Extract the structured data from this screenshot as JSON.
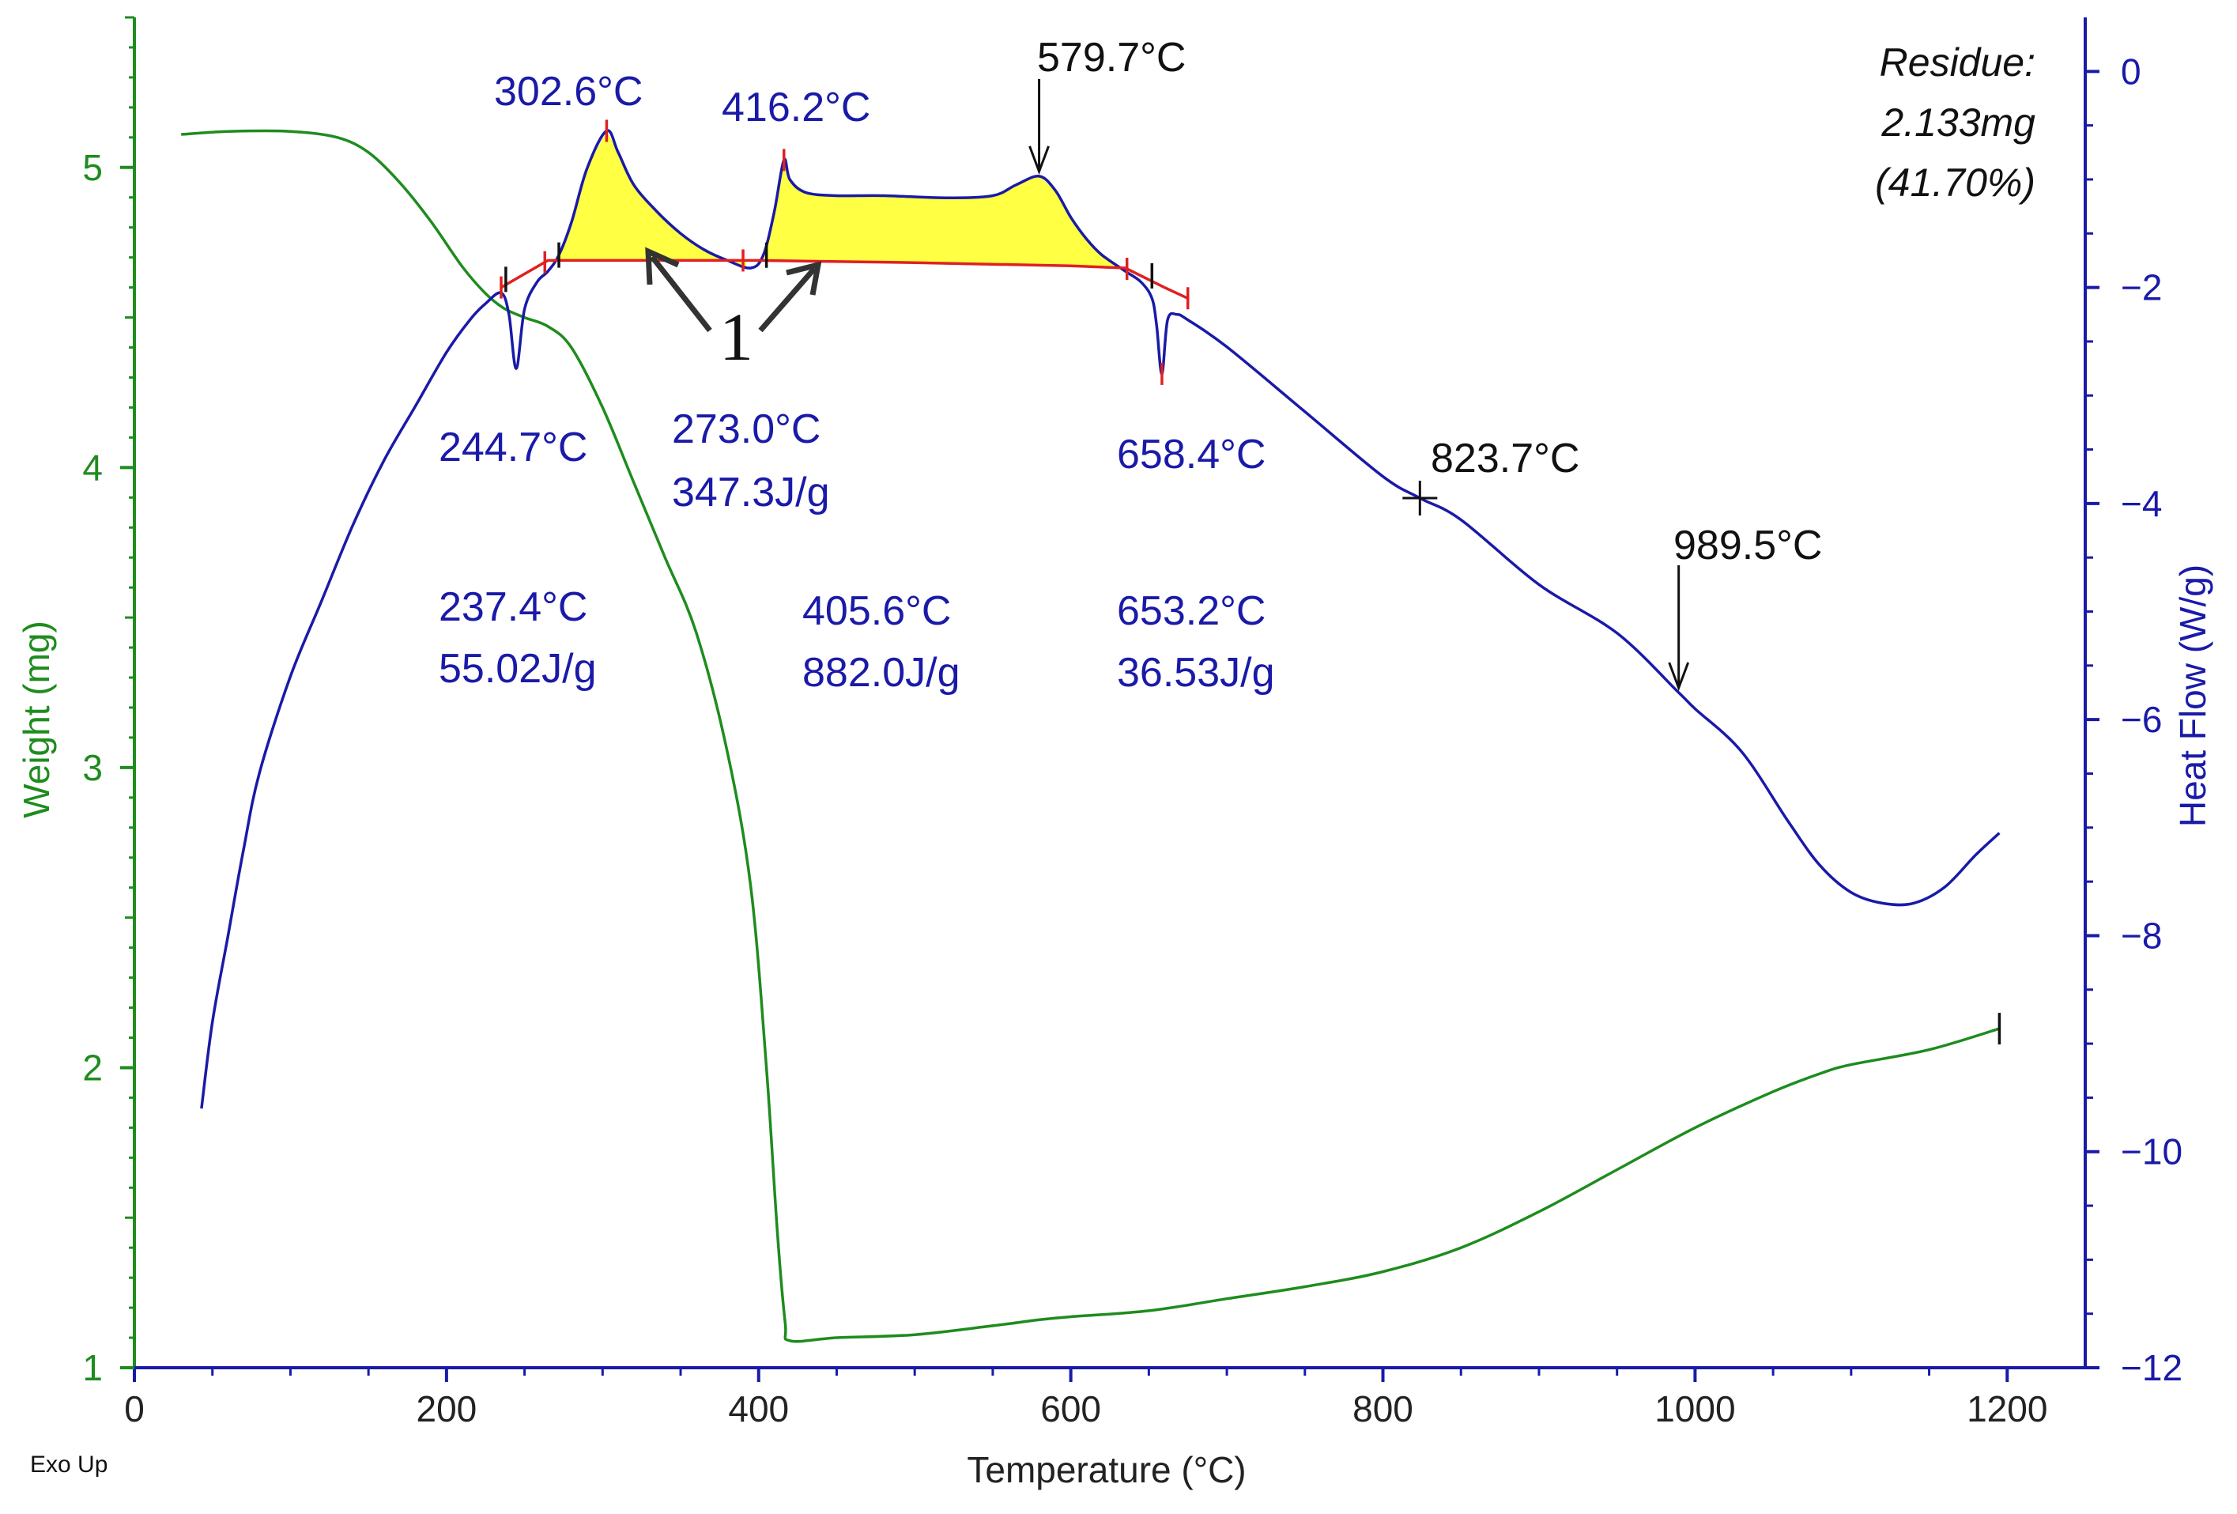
{
  "chart_data": {
    "type": "line",
    "title": "",
    "xlabel": "Temperature (°C)",
    "ylabel_left": "Weight (mg)",
    "ylabel_right": "Heat Flow (W/g)",
    "corner_label": "Exo Up",
    "xlim": [
      0,
      1250
    ],
    "ylim_left": [
      1,
      5.5
    ],
    "ylim_right": [
      -12,
      0.5
    ],
    "x_ticks": [
      "0",
      "200",
      "400",
      "600",
      "800",
      "1000",
      "1200"
    ],
    "y_left_ticks": [
      "1",
      "2",
      "3",
      "4",
      "5"
    ],
    "y_right_ticks": [
      "0",
      "-2",
      "-4",
      "-6",
      "-8",
      "-10",
      "-12"
    ],
    "colors": {
      "weight": "#1e8c1e",
      "heat_flow": "#1a1aa8",
      "baseline": "#e02020",
      "fill": "#ffff44",
      "annotation_blue": "#1a1aa8",
      "annotation_black": "#111111"
    },
    "series": [
      {
        "name": "Weight",
        "axis": "left",
        "color": "#1e8c1e",
        "x": [
          30,
          60,
          100,
          130,
          150,
          170,
          190,
          210,
          225,
          237,
          250,
          265,
          280,
          300,
          320,
          340,
          360,
          380,
          395,
          405,
          412,
          417,
          420,
          450,
          500,
          550,
          580,
          600,
          650,
          700,
          750,
          800,
          850,
          900,
          950,
          1000,
          1050,
          1080,
          1100,
          1150,
          1195
        ],
        "y": [
          5.11,
          5.12,
          5.12,
          5.1,
          5.05,
          4.95,
          4.82,
          4.67,
          4.58,
          4.53,
          4.5,
          4.47,
          4.4,
          4.2,
          3.95,
          3.7,
          3.45,
          3.05,
          2.6,
          2.0,
          1.45,
          1.15,
          1.09,
          1.1,
          1.11,
          1.14,
          1.16,
          1.17,
          1.19,
          1.23,
          1.27,
          1.32,
          1.4,
          1.52,
          1.66,
          1.8,
          1.92,
          1.98,
          2.01,
          2.06,
          2.13
        ]
      },
      {
        "name": "Heat Flow",
        "axis": "right",
        "color": "#1a1aa8",
        "x": [
          43,
          50,
          60,
          70,
          80,
          100,
          120,
          140,
          160,
          180,
          200,
          215,
          225,
          235,
          240,
          244.7,
          250,
          258,
          265,
          272,
          280,
          290,
          302.6,
          310,
          320,
          335,
          350,
          365,
          380,
          395,
          403,
          410,
          416.2,
          420,
          430,
          450,
          480,
          520,
          550,
          565,
          579.7,
          590,
          600,
          610,
          620,
          635,
          645,
          652,
          655,
          658.4,
          662,
          668,
          675,
          700,
          750,
          800,
          823.7,
          850,
          900,
          950,
          989.5,
          1000,
          1030,
          1060,
          1080,
          1100,
          1120,
          1140,
          1160,
          1180,
          1195
        ],
        "y": [
          -9.6,
          -8.8,
          -8.0,
          -7.2,
          -6.5,
          -5.6,
          -4.9,
          -4.2,
          -3.6,
          -3.1,
          -2.6,
          -2.3,
          -2.15,
          -2.05,
          -2.25,
          -2.75,
          -2.2,
          -1.95,
          -1.85,
          -1.7,
          -1.4,
          -0.9,
          -0.55,
          -0.75,
          -1.05,
          -1.3,
          -1.5,
          -1.65,
          -1.75,
          -1.82,
          -1.7,
          -1.3,
          -0.82,
          -1.0,
          -1.12,
          -1.15,
          -1.15,
          -1.17,
          -1.15,
          -1.05,
          -0.97,
          -1.1,
          -1.35,
          -1.55,
          -1.7,
          -1.85,
          -1.95,
          -2.1,
          -2.35,
          -2.8,
          -2.3,
          -2.25,
          -2.3,
          -2.55,
          -3.15,
          -3.75,
          -3.95,
          -4.15,
          -4.75,
          -5.2,
          -5.75,
          -5.9,
          -6.3,
          -6.95,
          -7.35,
          -7.6,
          -7.7,
          -7.7,
          -7.55,
          -7.25,
          -7.05
        ]
      },
      {
        "name": "Baseline",
        "axis": "right",
        "color": "#e02020",
        "x": [
          235,
          265,
          300,
          400,
          500,
          600,
          635,
          660,
          675
        ],
        "y": [
          -2.0,
          -1.75,
          -1.75,
          -1.75,
          -1.77,
          -1.8,
          -1.82,
          -2.0,
          -2.1
        ]
      }
    ],
    "peak_labels": [
      {
        "id": "p302",
        "text": "302.6°C",
        "x": 302.6,
        "y": -0.55,
        "color": "blue"
      },
      {
        "id": "p416",
        "text": "416.2°C",
        "x": 416.2,
        "y": -0.82,
        "color": "blue"
      },
      {
        "id": "p579",
        "text": "579.7°C",
        "x": 579.7,
        "y": -0.97,
        "color": "black"
      },
      {
        "id": "p244",
        "text": "244.7°C",
        "x": 244.7,
        "y": -2.75,
        "color": "blue"
      },
      {
        "id": "p658",
        "text": "658.4°C",
        "x": 658.4,
        "y": -2.8,
        "color": "blue"
      },
      {
        "id": "p823",
        "text": "823.7°C",
        "x": 823.7,
        "y": -3.95,
        "color": "black"
      },
      {
        "id": "p989",
        "text": "989.5°C",
        "x": 989.5,
        "y": -5.75,
        "color": "black"
      }
    ],
    "integrations": [
      {
        "onset": "273.0°C",
        "enthalpy": "347.3J/g"
      },
      {
        "onset": "237.4°C",
        "enthalpy": "55.02J/g"
      },
      {
        "onset": "405.6°C",
        "enthalpy": "882.0J/g"
      },
      {
        "onset": "653.2°C",
        "enthalpy": "36.53J/g"
      }
    ],
    "residue": {
      "title": "Residue:",
      "mass": "2.133mg",
      "percent": "(41.70%)"
    },
    "arrow_label": "1"
  }
}
